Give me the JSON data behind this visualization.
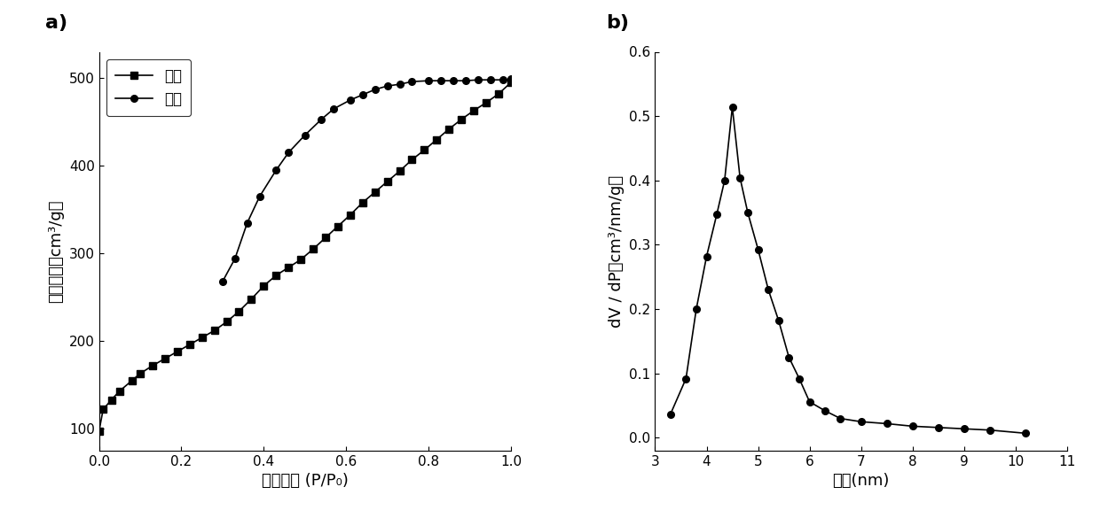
{
  "panel_a": {
    "xlabel": "相对压力 (P/P₀)",
    "ylabel": "吸附体积（cm³/g）",
    "xlim": [
      0,
      1.0
    ],
    "ylim": [
      75,
      530
    ],
    "yticks": [
      100,
      200,
      300,
      400,
      500
    ],
    "xticks": [
      0.0,
      0.2,
      0.4,
      0.6,
      0.8,
      1.0
    ],
    "desorption_x": [
      0.0,
      0.01,
      0.03,
      0.05,
      0.08,
      0.1,
      0.13,
      0.16,
      0.19,
      0.22,
      0.25,
      0.28,
      0.31,
      0.34,
      0.37,
      0.4,
      0.43,
      0.46,
      0.49,
      0.52,
      0.55,
      0.58,
      0.61,
      0.64,
      0.67,
      0.7,
      0.73,
      0.76,
      0.79,
      0.82,
      0.85,
      0.88,
      0.91,
      0.94,
      0.97,
      1.0
    ],
    "desorption_y": [
      97,
      122,
      133,
      143,
      155,
      163,
      172,
      180,
      188,
      196,
      204,
      212,
      222,
      234,
      248,
      263,
      275,
      284,
      293,
      305,
      318,
      331,
      344,
      358,
      370,
      382,
      394,
      407,
      418,
      430,
      442,
      453,
      463,
      472,
      482,
      495
    ],
    "adsorption_x": [
      0.3,
      0.33,
      0.36,
      0.39,
      0.43,
      0.46,
      0.5,
      0.54,
      0.57,
      0.61,
      0.64,
      0.67,
      0.7,
      0.73,
      0.76,
      0.8,
      0.83,
      0.86,
      0.89,
      0.92,
      0.95,
      0.98,
      1.0
    ],
    "adsorption_y": [
      268,
      294,
      335,
      365,
      395,
      415,
      435,
      453,
      465,
      475,
      481,
      487,
      491,
      493,
      496,
      497,
      497,
      497,
      497,
      498,
      498,
      498,
      499
    ],
    "legend_desorption": "脲附",
    "legend_adsorption": "吸附"
  },
  "panel_b": {
    "xlabel": "孔径(nm)",
    "ylabel": "dV / dP（cm³/nm/g）",
    "xlim": [
      3,
      11
    ],
    "ylim": [
      -0.02,
      0.6
    ],
    "yticks": [
      0.0,
      0.1,
      0.2,
      0.3,
      0.4,
      0.5,
      0.6
    ],
    "xticks": [
      3,
      4,
      5,
      6,
      7,
      8,
      9,
      10,
      11
    ],
    "pore_x": [
      3.3,
      3.6,
      3.8,
      4.0,
      4.2,
      4.35,
      4.5,
      4.65,
      4.8,
      5.0,
      5.2,
      5.4,
      5.6,
      5.8,
      6.0,
      6.3,
      6.6,
      7.0,
      7.5,
      8.0,
      8.5,
      9.0,
      9.5,
      10.2
    ],
    "pore_y": [
      0.037,
      0.092,
      0.2,
      0.282,
      0.348,
      0.4,
      0.514,
      0.404,
      0.35,
      0.293,
      0.23,
      0.182,
      0.125,
      0.092,
      0.056,
      0.042,
      0.03,
      0.025,
      0.022,
      0.018,
      0.016,
      0.014,
      0.012,
      0.007
    ]
  },
  "line_color": "#000000",
  "marker_size": 5.5,
  "linewidth": 1.2
}
